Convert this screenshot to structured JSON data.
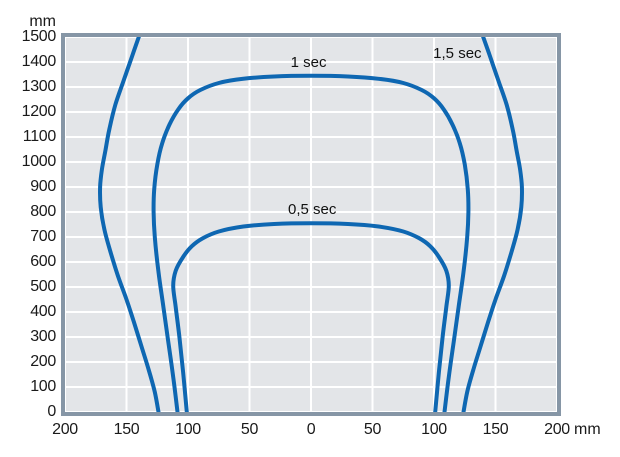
{
  "chart_data": {
    "type": "line",
    "title": "",
    "grid": true,
    "legend_position": "inline-labels",
    "x_axis": {
      "unit": "mm",
      "range_mm": [
        -200,
        200
      ],
      "tick_step_mm": 50,
      "ticks": [
        {
          "mm": -200,
          "label": "200"
        },
        {
          "mm": -150,
          "label": "150"
        },
        {
          "mm": -100,
          "label": "100"
        },
        {
          "mm": -50,
          "label": "50"
        },
        {
          "mm": 0,
          "label": "0"
        },
        {
          "mm": 50,
          "label": "50"
        },
        {
          "mm": 100,
          "label": "100"
        },
        {
          "mm": 150,
          "label": "150"
        },
        {
          "mm": 200,
          "label": "200"
        }
      ]
    },
    "y_axis": {
      "unit": "mm",
      "range_mm": [
        0,
        1500
      ],
      "tick_step_mm": 100,
      "ticks": [
        {
          "mm": 1500,
          "label": "1500"
        },
        {
          "mm": 1400,
          "label": "1400"
        },
        {
          "mm": 1300,
          "label": "1300"
        },
        {
          "mm": 1200,
          "label": "1200"
        },
        {
          "mm": 1100,
          "label": "1100"
        },
        {
          "mm": 1000,
          "label": "1000"
        },
        {
          "mm": 900,
          "label": "900"
        },
        {
          "mm": 800,
          "label": "800"
        },
        {
          "mm": 700,
          "label": "700"
        },
        {
          "mm": 600,
          "label": "600"
        },
        {
          "mm": 500,
          "label": "500"
        },
        {
          "mm": 400,
          "label": "400"
        },
        {
          "mm": 300,
          "label": "300"
        },
        {
          "mm": 200,
          "label": "200"
        },
        {
          "mm": 100,
          "label": "100"
        },
        {
          "mm": 0,
          "label": "0"
        }
      ]
    },
    "series": [
      {
        "name": "0,5 sec",
        "color": "#0e67b2",
        "label": {
          "text": "0,5 sec",
          "mm_x": 1,
          "mm_y": 810
        },
        "peak_mm": 755,
        "base_width_mm": 101,
        "segments": [
          [
            [
              -101,
              0
            ],
            [
              -104,
              160
            ],
            [
              -107,
              300
            ],
            [
              -110,
              420
            ],
            [
              -112,
              505
            ],
            [
              -110,
              565
            ],
            [
              -104,
              620
            ],
            [
              -97,
              663
            ],
            [
              -88,
              695
            ],
            [
              -75,
              722
            ],
            [
              -55,
              742
            ],
            [
              -30,
              752
            ],
            [
              0,
              755
            ],
            [
              30,
              752
            ],
            [
              55,
              742
            ],
            [
              75,
              722
            ],
            [
              88,
              695
            ],
            [
              97,
              663
            ],
            [
              104,
              620
            ],
            [
              110,
              565
            ],
            [
              112,
              505
            ],
            [
              110,
              420
            ],
            [
              107,
              300
            ],
            [
              104,
              160
            ],
            [
              101,
              0
            ]
          ]
        ]
      },
      {
        "name": "1 sec",
        "color": "#0e67b2",
        "label": {
          "text": "1 sec",
          "mm_x": -2,
          "mm_y": 1398
        },
        "peak_mm": 1345,
        "base_width_mm": 108,
        "segments": [
          [
            [
              -108.5,
              0
            ],
            [
              -112,
              140
            ],
            [
              -116,
              280
            ],
            [
              -120,
              420
            ],
            [
              -124,
              560
            ],
            [
              -127,
              700
            ],
            [
              -128,
              800
            ],
            [
              -127.5,
              890
            ],
            [
              -125,
              990
            ],
            [
              -121,
              1075
            ],
            [
              -115,
              1150
            ],
            [
              -108,
              1210
            ],
            [
              -100,
              1255
            ],
            [
              -90,
              1288
            ],
            [
              -75,
              1316
            ],
            [
              -55,
              1333
            ],
            [
              -30,
              1342
            ],
            [
              0,
              1345
            ],
            [
              30,
              1342
            ],
            [
              55,
              1333
            ],
            [
              75,
              1316
            ],
            [
              90,
              1288
            ],
            [
              100,
              1255
            ],
            [
              108,
              1210
            ],
            [
              115,
              1150
            ],
            [
              121,
              1075
            ],
            [
              125,
              990
            ],
            [
              127.5,
              890
            ],
            [
              128,
              800
            ],
            [
              127,
              700
            ],
            [
              124,
              560
            ],
            [
              120,
              420
            ],
            [
              116,
              280
            ],
            [
              112,
              140
            ],
            [
              108.5,
              0
            ]
          ]
        ]
      },
      {
        "name": "1,5 sec",
        "color": "#0e67b2",
        "label": {
          "text": "1,5 sec",
          "mm_x": 119,
          "mm_y": 1432
        },
        "peak_mm": 1500,
        "base_width_mm": 124,
        "segments": [
          [
            [
              -124,
              0
            ],
            [
              -127,
              80
            ],
            [
              -132,
              170
            ],
            [
              -138,
              265
            ],
            [
              -144,
              360
            ],
            [
              -150,
              450
            ],
            [
              -157,
              545
            ],
            [
              -163,
              640
            ],
            [
              -168,
              730
            ],
            [
              -171,
              820
            ],
            [
              -171.5,
              900
            ],
            [
              -170,
              970
            ],
            [
              -167,
              1050
            ],
            [
              -164,
              1130
            ],
            [
              -159,
              1230
            ],
            [
              -152,
              1330
            ],
            [
              -145,
              1430
            ],
            [
              -140,
              1500
            ]
          ],
          [
            [
              140,
              1500
            ],
            [
              145,
              1430
            ],
            [
              152,
              1330
            ],
            [
              159,
              1230
            ],
            [
              164,
              1130
            ],
            [
              167,
              1050
            ],
            [
              170,
              970
            ],
            [
              171.5,
              900
            ],
            [
              171,
              820
            ],
            [
              168,
              730
            ],
            [
              163,
              640
            ],
            [
              157,
              545
            ],
            [
              150,
              450
            ],
            [
              144,
              360
            ],
            [
              138,
              265
            ],
            [
              132,
              170
            ],
            [
              127,
              80
            ],
            [
              124,
              0
            ]
          ]
        ]
      }
    ]
  },
  "colors": {
    "curve": "#0e67b2",
    "plot_background": "#e3e5e8",
    "grid_line": "#ffffff",
    "frame": "#8696a6",
    "text": "#1a1a1a",
    "page_background": "#ffffff"
  }
}
